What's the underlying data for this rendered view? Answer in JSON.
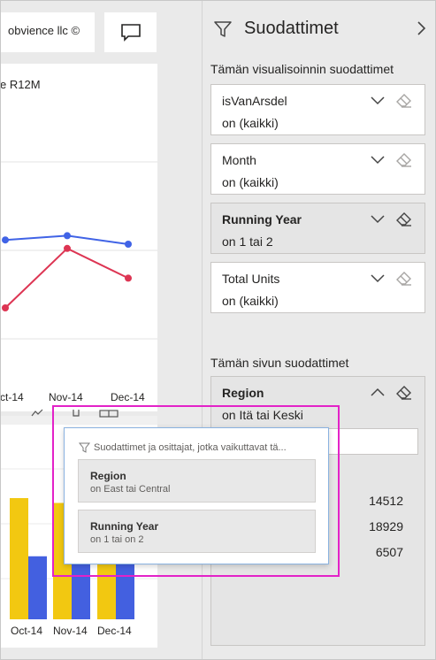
{
  "report": {
    "copyright": "obvience llc ©",
    "comment_icon": "comment-icon",
    "line_visual_title": "e R12M",
    "bar_header_icons": [
      "line-chart-icon",
      "pin-icon",
      "focus-mode-icon"
    ]
  },
  "chart_data": [
    {
      "type": "line",
      "title": "e R12M",
      "categories": [
        "Oct-14",
        "Nov-14",
        "Dec-14"
      ],
      "category_labels": [
        "ct-14",
        "Nov-14",
        "Dec-14"
      ],
      "series": [
        {
          "color": "#4063e6",
          "values": [
            0.62,
            0.64,
            0.6
          ]
        },
        {
          "color": "#dd3553",
          "values": [
            0.3,
            0.58,
            0.44
          ]
        }
      ],
      "grid": true
    },
    {
      "type": "bar",
      "categories": [
        "Oct-14",
        "Nov-14",
        "Dec-14"
      ],
      "series": [
        {
          "color": "#f2c811",
          "values": [
            1.0,
            0.96,
            0.96
          ]
        },
        {
          "color": "#4360e0",
          "values": [
            0.52,
            0.52,
            0.55
          ]
        }
      ],
      "grid": true
    }
  ],
  "filter_pane": {
    "title": "Suodattimet",
    "close_icon": "chevron-right-icon",
    "visual_section_label": "Tämän visualisoinnin suodattimet",
    "visual_filters": [
      {
        "name": "isVanArsdel",
        "state": "on (kaikki)",
        "applied": false
      },
      {
        "name": "Month",
        "state": "on (kaikki)",
        "applied": false
      },
      {
        "name": "Running Year",
        "state": "on 1 tai 2",
        "applied": true
      },
      {
        "name": "Total Units",
        "state": "on (kaikki)",
        "applied": false
      }
    ],
    "page_section_label": "Tämän sivun suodattimet",
    "page_filter": {
      "name": "Region",
      "state": "on Itä tai Keski",
      "values": [
        "14512",
        "18929",
        "6507"
      ]
    }
  },
  "popup": {
    "header": "Suodattimet ja osittajat, jotka vaikuttavat tä...",
    "items": [
      {
        "title": "Region",
        "subtitle": "on East tai Central"
      },
      {
        "title": "Running Year",
        "subtitle": "on 1 tai on 2"
      }
    ]
  }
}
